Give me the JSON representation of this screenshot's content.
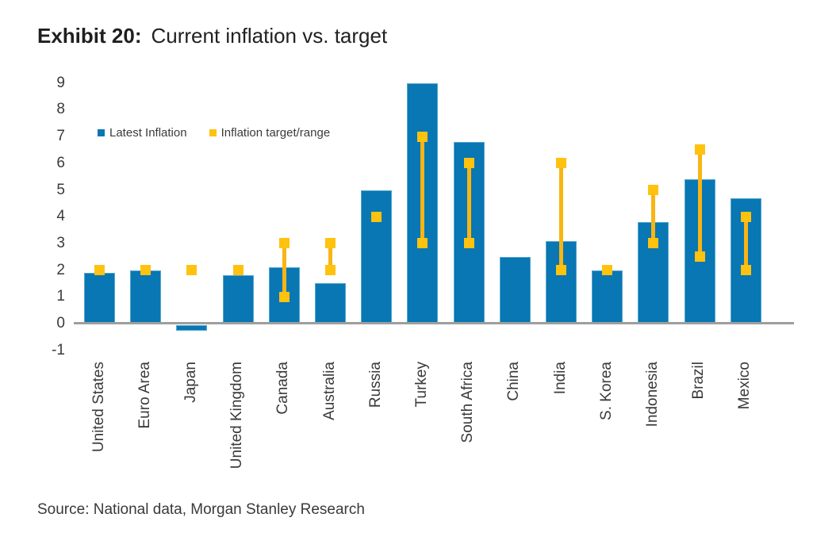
{
  "header": {
    "exhibit_label": "Exhibit 20:",
    "title": "Current inflation vs. target"
  },
  "legend": {
    "series1": "Latest Inflation",
    "series2": "Inflation target/range"
  },
  "source": "Source: National data, Morgan Stanley Research",
  "colors": {
    "bar": "#0877b3",
    "bar_edge": "#54a8cf",
    "marker": "#ffc20e",
    "marker_line": "#f9b513",
    "axis_line": "#9e9e9e",
    "text": "#3a3a3a",
    "title_text": "#212121"
  },
  "chart_data": {
    "type": "bar",
    "title": "Current inflation vs. target",
    "xlabel": "",
    "ylabel": "",
    "ylim": [
      -1,
      9
    ],
    "yticks": [
      9,
      8,
      7,
      6,
      5,
      4,
      3,
      2,
      1,
      0,
      -1
    ],
    "grid": false,
    "legend_position": "top-left-inside",
    "categories": [
      "United States",
      "Euro Area",
      "Japan",
      "United Kingdom",
      "Canada",
      "Australia",
      "Russia",
      "Turkey",
      "South Africa",
      "China",
      "India",
      "S. Korea",
      "Indonesia",
      "Brazil",
      "Mexico"
    ],
    "series": [
      {
        "name": "Latest Inflation",
        "type": "bar",
        "values": [
          1.9,
          2.0,
          -0.2,
          1.8,
          2.1,
          1.5,
          5.0,
          9.0,
          6.8,
          2.5,
          3.1,
          2.0,
          3.8,
          5.4,
          4.7
        ]
      },
      {
        "name": "Inflation target/range",
        "type": "range-marker",
        "ranges": [
          {
            "low": 2,
            "high": 2
          },
          {
            "low": 2,
            "high": 2
          },
          {
            "low": 2,
            "high": 2
          },
          {
            "low": 2,
            "high": 2
          },
          {
            "low": 1,
            "high": 3
          },
          {
            "low": 2,
            "high": 3
          },
          {
            "low": 4,
            "high": 4
          },
          {
            "low": 3,
            "high": 7
          },
          {
            "low": 3,
            "high": 6
          },
          null,
          {
            "low": 2,
            "high": 6
          },
          {
            "low": 2,
            "high": 2
          },
          {
            "low": 3,
            "high": 5
          },
          {
            "low": 2.5,
            "high": 6.5
          },
          {
            "low": 2,
            "high": 4
          }
        ]
      }
    ]
  }
}
